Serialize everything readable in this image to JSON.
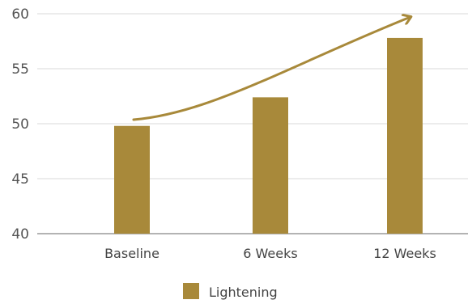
{
  "chart_data": {
    "type": "bar",
    "title": "",
    "xlabel": "",
    "ylabel": "",
    "categories": [
      "Baseline",
      "6 Weeks",
      "12 Weeks"
    ],
    "series": [
      {
        "name": "Lightening",
        "values": [
          49.8,
          52.4,
          57.8
        ],
        "color": "#a8893a"
      }
    ],
    "ylim": [
      40,
      60
    ],
    "yticks": [
      40,
      45,
      50,
      55,
      60
    ],
    "grid": true,
    "legend": "bottom",
    "annotations": [
      {
        "type": "trend-arrow",
        "color": "#a8893a",
        "from_category": "Baseline",
        "to_category": "12 Weeks"
      }
    ]
  }
}
